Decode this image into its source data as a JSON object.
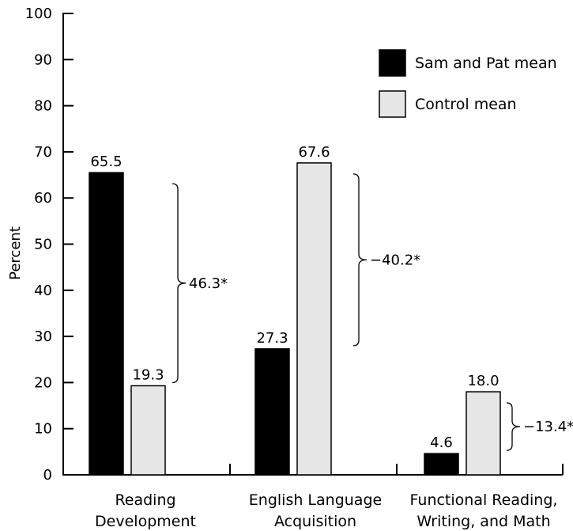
{
  "chart_data": {
    "type": "bar",
    "ylabel": "Percent",
    "xlabel": "",
    "ylim": [
      0,
      100
    ],
    "yticks": [
      0,
      10,
      20,
      30,
      40,
      50,
      60,
      70,
      80,
      90,
      100
    ],
    "categories": [
      [
        "Reading",
        "Development"
      ],
      [
        "English Language",
        "Acquisition"
      ],
      [
        "Functional Reading,",
        "Writing, and Math"
      ]
    ],
    "series": [
      {
        "name": "Sam and Pat mean",
        "values": [
          65.5,
          27.3,
          4.6
        ],
        "labels": [
          "65.5",
          "27.3",
          "4.6"
        ],
        "color": "#000000"
      },
      {
        "name": "Control mean",
        "values": [
          19.3,
          67.6,
          18.0
        ],
        "labels": [
          "19.3",
          "67.6",
          "18.0"
        ],
        "color": "#e6e6e6"
      }
    ],
    "differences": [
      "46.3*",
      "−40.2*",
      "−13.4*"
    ],
    "legend_position": "top-right",
    "grid": false
  }
}
